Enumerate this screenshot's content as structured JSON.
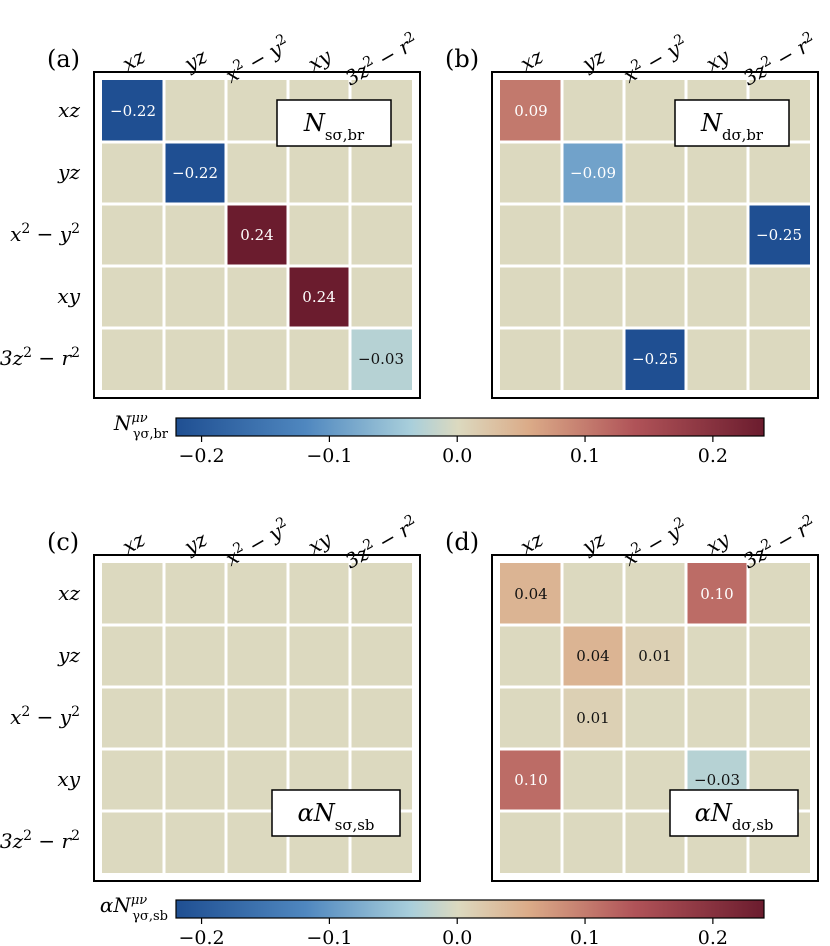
{
  "row_labels": [
    "xz",
    "yz",
    "x² − y²",
    "xy",
    "3z² − r²"
  ],
  "col_labels": [
    "xz",
    "yz",
    "x² − y²",
    "xy",
    "3z² − r²"
  ],
  "colors": {
    "empty": "#dcd9bf",
    "grid": "#ffffff",
    "frame": "#000000"
  },
  "chart_data": [
    {
      "type": "heatmap",
      "panel": "(a)",
      "title": "N_sσ,br",
      "rows": [
        "xz",
        "yz",
        "x² − y²",
        "xy",
        "3z² − r²"
      ],
      "columns": [
        "xz",
        "yz",
        "x² − y²",
        "xy",
        "3z² − r²"
      ],
      "cells": [
        {
          "row": 0,
          "col": 0,
          "value": -0.22,
          "label": "−0.22"
        },
        {
          "row": 1,
          "col": 1,
          "value": -0.22,
          "label": "−0.22"
        },
        {
          "row": 2,
          "col": 2,
          "value": 0.24,
          "label": "0.24"
        },
        {
          "row": 3,
          "col": 3,
          "value": 0.24,
          "label": "0.24"
        },
        {
          "row": 4,
          "col": 4,
          "value": -0.03,
          "label": "−0.03"
        }
      ]
    },
    {
      "type": "heatmap",
      "panel": "(b)",
      "title": "N_dσ,br",
      "rows": [
        "xz",
        "yz",
        "x² − y²",
        "xy",
        "3z² − r²"
      ],
      "columns": [
        "xz",
        "yz",
        "x² − y²",
        "xy",
        "3z² − r²"
      ],
      "cells": [
        {
          "row": 0,
          "col": 0,
          "value": 0.09,
          "label": "0.09"
        },
        {
          "row": 1,
          "col": 1,
          "value": -0.09,
          "label": "−0.09"
        },
        {
          "row": 2,
          "col": 4,
          "value": -0.25,
          "label": "−0.25"
        },
        {
          "row": 4,
          "col": 2,
          "value": -0.25,
          "label": "−0.25"
        }
      ]
    },
    {
      "type": "heatmap",
      "panel": "(c)",
      "title": "αN_sσ,sb",
      "rows": [
        "xz",
        "yz",
        "x² − y²",
        "xy",
        "3z² − r²"
      ],
      "columns": [
        "xz",
        "yz",
        "x² − y²",
        "xy",
        "3z² − r²"
      ],
      "cells": []
    },
    {
      "type": "heatmap",
      "panel": "(d)",
      "title": "αN_dσ,sb",
      "rows": [
        "xz",
        "yz",
        "x² − y²",
        "xy",
        "3z² − r²"
      ],
      "columns": [
        "xz",
        "yz",
        "x² − y²",
        "xy",
        "3z² − r²"
      ],
      "cells": [
        {
          "row": 0,
          "col": 0,
          "value": 0.04,
          "label": "0.04"
        },
        {
          "row": 0,
          "col": 3,
          "value": 0.1,
          "label": "0.10"
        },
        {
          "row": 1,
          "col": 1,
          "value": 0.04,
          "label": "0.04"
        },
        {
          "row": 1,
          "col": 2,
          "value": 0.01,
          "label": "0.01"
        },
        {
          "row": 2,
          "col": 1,
          "value": 0.01,
          "label": "0.01"
        },
        {
          "row": 3,
          "col": 0,
          "value": 0.1,
          "label": "0.10"
        },
        {
          "row": 3,
          "col": 3,
          "value": -0.03,
          "label": "−0.03"
        }
      ]
    }
  ],
  "colorbars": [
    {
      "label": "N^μν_γσ,br",
      "range": [
        -0.22,
        0.24
      ],
      "ticks": [
        -0.2,
        -0.1,
        0.0,
        0.1,
        0.2
      ],
      "tick_labels": [
        "−0.2",
        "−0.1",
        "0.0",
        "0.1",
        "0.2"
      ]
    },
    {
      "label": "αN^μν_γσ,sb",
      "range": [
        -0.22,
        0.24
      ],
      "ticks": [
        -0.2,
        -0.1,
        0.0,
        0.1,
        0.2
      ],
      "tick_labels": [
        "−0.2",
        "−0.1",
        "0.0",
        "0.1",
        "0.2"
      ]
    }
  ]
}
